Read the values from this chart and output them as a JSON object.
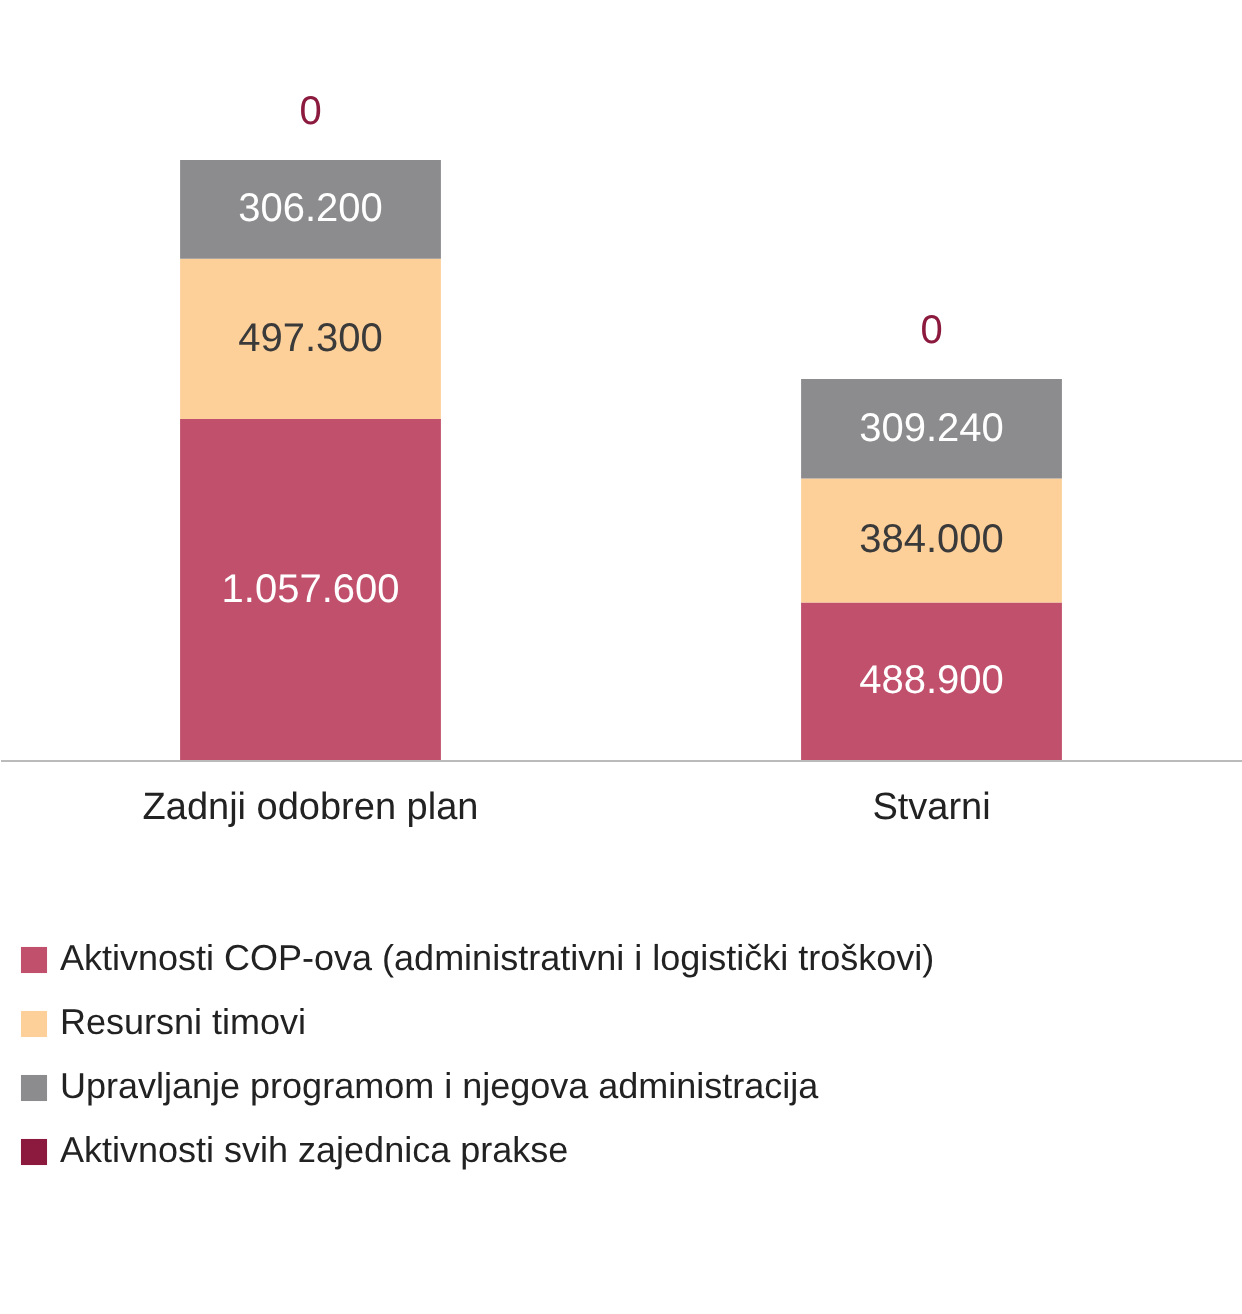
{
  "chart_data": {
    "type": "bar",
    "stacked": true,
    "categories": [
      "Zadnji odobren plan",
      "Stvarni"
    ],
    "series": [
      {
        "name": "Aktivnosti COP-ova (administrativni i logistički troškovi)",
        "color": "#c0506b",
        "values": [
          1057600,
          488900
        ],
        "value_labels": [
          "1.057.600",
          "488.900"
        ]
      },
      {
        "name": "Resursni timovi",
        "color": "#fdd09a",
        "values": [
          497300,
          384000
        ],
        "value_labels": [
          "497.300",
          "384.000"
        ]
      },
      {
        "name": "Upravljanje programom i njegova administracija",
        "color": "#8c8c8e",
        "values": [
          306200,
          309240
        ],
        "value_labels": [
          "306.200",
          "309.240"
        ]
      },
      {
        "name": "Aktivnosti svih zajednica prakse",
        "color": "#8b1a3e",
        "values": [
          0,
          0
        ],
        "value_labels": [
          "0",
          "0"
        ]
      }
    ],
    "legend": "bottom",
    "tick_labels": "x",
    "grid": false
  }
}
